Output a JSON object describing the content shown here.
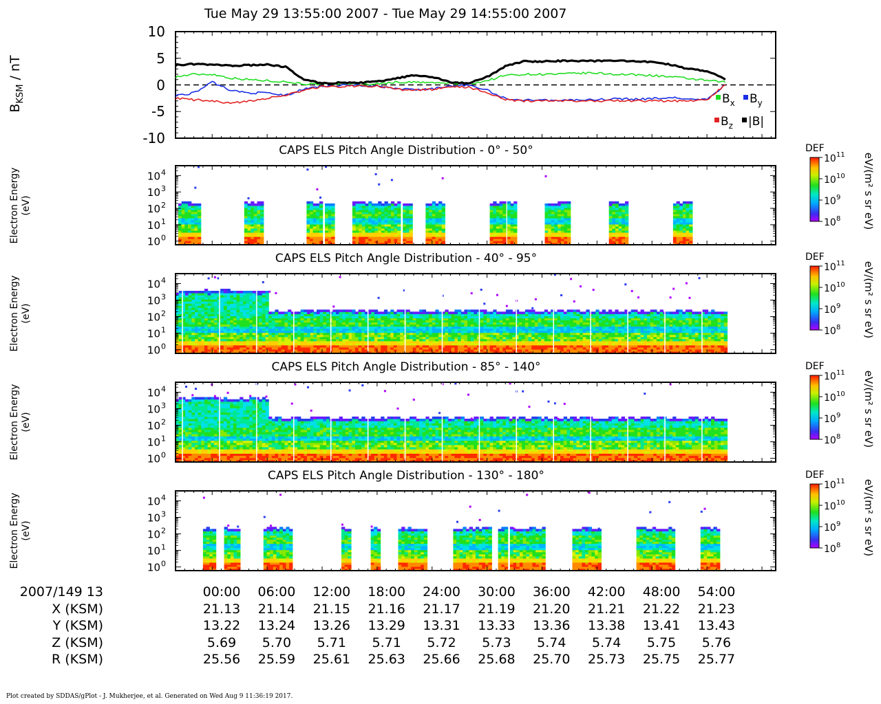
{
  "title": "Tue May 29 13:55:00 2007 - Tue May 29 14:55:00 2007",
  "footer": "Plot created by SDDAS/gPlot - J. Mukherjee, et al.  Generated on Wed Aug 9 11:36:19 2017.",
  "colors": {
    "bx": "#22dd22",
    "by": "#1a2ee6",
    "bz": "#e22222",
    "bmag": "#000000"
  },
  "chart_data": [
    {
      "type": "line",
      "ylabel_main": "B",
      "ylabel_sub": "KSM",
      "ylabel_unit": " / nT",
      "ylim": [
        -10,
        10
      ],
      "yticks": [
        10,
        5,
        0,
        -5,
        -10
      ],
      "ytick_labels": [
        "10",
        "5",
        "0",
        "-5",
        "-10"
      ],
      "x_minutes": [
        0,
        2,
        4,
        6,
        8,
        10,
        12,
        14,
        16,
        18,
        20,
        22,
        24,
        26,
        28,
        30,
        32,
        34,
        36,
        38,
        40,
        42,
        44,
        46,
        48,
        50,
        52,
        54,
        56,
        58,
        60
      ],
      "legend": [
        {
          "key": "bx",
          "main": "B",
          "sub": "x"
        },
        {
          "key": "by",
          "main": "B",
          "sub": "y"
        },
        {
          "key": "bz",
          "main": "B",
          "sub": "z"
        },
        {
          "key": "bmag",
          "main": "|B|",
          "sub": ""
        }
      ],
      "series": [
        {
          "key": "bx",
          "values": [
            1.5,
            2.0,
            2.0,
            1.3,
            1.0,
            0.8,
            0.6,
            0.2,
            0.1,
            0.2,
            0.1,
            0.2,
            0.5,
            0.5,
            0.4,
            0.3,
            0.2,
            0.8,
            1.8,
            2.0,
            2.0,
            2.0,
            2.2,
            2.2,
            2.0,
            1.9,
            1.8,
            1.5,
            1.2,
            0.8,
            0.5
          ]
        },
        {
          "key": "by",
          "values": [
            -2.0,
            -1.5,
            0.5,
            -1.0,
            -1.5,
            -1.5,
            -2.0,
            -0.8,
            -0.2,
            -0.1,
            0.0,
            -0.3,
            -0.7,
            -0.9,
            -0.8,
            -0.2,
            0.0,
            -1.0,
            -2.6,
            -2.8,
            -2.9,
            -2.9,
            -2.8,
            -2.8,
            -2.6,
            -2.7,
            -2.6,
            -2.4,
            -2.6,
            -2.8,
            0.0
          ]
        },
        {
          "key": "bz",
          "values": [
            -2.5,
            -2.8,
            -3.0,
            -3.5,
            -3.0,
            -2.5,
            -2.0,
            -1.0,
            -0.3,
            -0.3,
            -0.2,
            -0.2,
            -0.8,
            -1.0,
            -0.9,
            -0.4,
            -0.4,
            -1.5,
            -2.8,
            -3.0,
            -3.0,
            -3.0,
            -3.0,
            -3.0,
            -3.0,
            -3.0,
            -3.0,
            -3.0,
            -3.0,
            -2.8,
            0.0
          ]
        },
        {
          "key": "bmag",
          "values": [
            3.7,
            3.9,
            3.8,
            3.6,
            3.7,
            3.8,
            3.4,
            1.0,
            0.3,
            0.4,
            0.4,
            0.6,
            1.2,
            1.8,
            1.5,
            0.5,
            0.3,
            1.5,
            3.5,
            4.4,
            4.4,
            4.5,
            4.5,
            4.5,
            4.6,
            4.4,
            4.3,
            3.8,
            3.0,
            2.6,
            1.0
          ]
        }
      ]
    },
    {
      "type": "heatmap",
      "title": "CAPS ELS Pitch Angle Distribution - 0° - 50°",
      "ylabel_line1": "Electron Energy",
      "ylabel_line2": "(eV)",
      "ylim": [
        0.6,
        40000
      ],
      "y_scale": "log",
      "y_tick_exponents": [
        0,
        1,
        2,
        3,
        4
      ],
      "cb_label": "DEF",
      "cb_units": "eV/(m² s sr eV)",
      "cb_tick_exponents": [
        11,
        10,
        9,
        8
      ],
      "upper_cutoff_eV": 200,
      "coverage_minutes": [
        [
          0.3,
          2.6
        ],
        [
          7.5,
          9.3
        ],
        [
          14.3,
          15.8
        ],
        [
          16.3,
          17.3
        ],
        [
          19.3,
          24.3
        ],
        [
          24.8,
          25.6
        ],
        [
          27.3,
          29.1
        ],
        [
          34.3,
          35.8
        ],
        [
          36.2,
          37.1
        ],
        [
          40.3,
          43.1
        ],
        [
          47.3,
          49.3
        ],
        [
          54.3,
          56.1
        ]
      ]
    },
    {
      "type": "heatmap",
      "title": "CAPS ELS Pitch Angle Distribution - 40° - 95°",
      "ylabel_line1": "Electron Energy",
      "ylabel_line2": "(eV)",
      "ylim": [
        0.6,
        40000
      ],
      "y_scale": "log",
      "y_tick_exponents": [
        0,
        1,
        2,
        3,
        4
      ],
      "cb_label": "DEF",
      "cb_units": "eV/(m² s sr eV)",
      "cb_tick_exponents": [
        11,
        10,
        9,
        8
      ],
      "upper_cutoff_eV": 200,
      "coverage_minutes": [
        [
          0,
          60
        ]
      ]
    },
    {
      "type": "heatmap",
      "title": "CAPS ELS Pitch Angle Distribution - 85° - 140°",
      "ylabel_line1": "Electron Energy",
      "ylabel_line2": "(eV)",
      "ylim": [
        0.6,
        40000
      ],
      "y_scale": "log",
      "y_tick_exponents": [
        0,
        1,
        2,
        3,
        4
      ],
      "cb_label": "DEF",
      "cb_units": "eV/(m² s sr eV)",
      "cb_tick_exponents": [
        11,
        10,
        9,
        8
      ],
      "upper_cutoff_eV": 250,
      "coverage_minutes": [
        [
          0,
          60
        ]
      ]
    },
    {
      "type": "heatmap",
      "title": "CAPS ELS Pitch Angle Distribution - 130° - 180°",
      "ylabel_line1": "Electron Energy",
      "ylabel_line2": "(eV)",
      "ylim": [
        0.6,
        40000
      ],
      "y_scale": "log",
      "y_tick_exponents": [
        0,
        1,
        2,
        3,
        4
      ],
      "cb_label": "DEF",
      "cb_units": "eV/(m² s sr eV)",
      "cb_tick_exponents": [
        11,
        10,
        9,
        8
      ],
      "upper_cutoff_eV": 200,
      "coverage_minutes": [
        [
          3.0,
          4.3
        ],
        [
          5.3,
          6.8
        ],
        [
          9.6,
          12.5
        ],
        [
          18.1,
          18.5
        ],
        [
          18.8,
          19.1
        ],
        [
          21.3,
          22.2
        ],
        [
          24.3,
          27.3
        ],
        [
          30.3,
          34.3
        ],
        [
          35.2,
          36.0
        ],
        [
          36.5,
          40.3
        ],
        [
          43.3,
          46.3
        ],
        [
          50.3,
          54.3
        ],
        [
          57.3,
          59.3
        ]
      ]
    }
  ],
  "ephemeris": {
    "time_ticks_minutes": [
      5,
      11,
      17,
      23,
      29,
      35,
      41,
      47,
      53,
      59
    ],
    "rows": [
      {
        "label": "2007/149 13",
        "values": [
          "00:00",
          "06:00",
          "12:00",
          "18:00",
          "24:00",
          "30:00",
          "36:00",
          "42:00",
          "48:00",
          "54:00"
        ]
      },
      {
        "label": "X (KSM)",
        "values": [
          "21.13",
          "21.14",
          "21.15",
          "21.16",
          "21.17",
          "21.19",
          "21.20",
          "21.21",
          "21.22",
          "21.23"
        ]
      },
      {
        "label": "Y (KSM)",
        "values": [
          "13.22",
          "13.24",
          "13.26",
          "13.29",
          "13.31",
          "13.33",
          "13.36",
          "13.38",
          "13.41",
          "13.43"
        ]
      },
      {
        "label": "Z (KSM)",
        "values": [
          "5.69",
          "5.70",
          "5.71",
          "5.71",
          "5.72",
          "5.73",
          "5.74",
          "5.74",
          "5.75",
          "5.76"
        ]
      },
      {
        "label": "R (KSM)",
        "values": [
          "25.56",
          "25.59",
          "25.61",
          "25.63",
          "25.66",
          "25.68",
          "25.70",
          "25.73",
          "25.75",
          "25.77"
        ]
      }
    ]
  }
}
